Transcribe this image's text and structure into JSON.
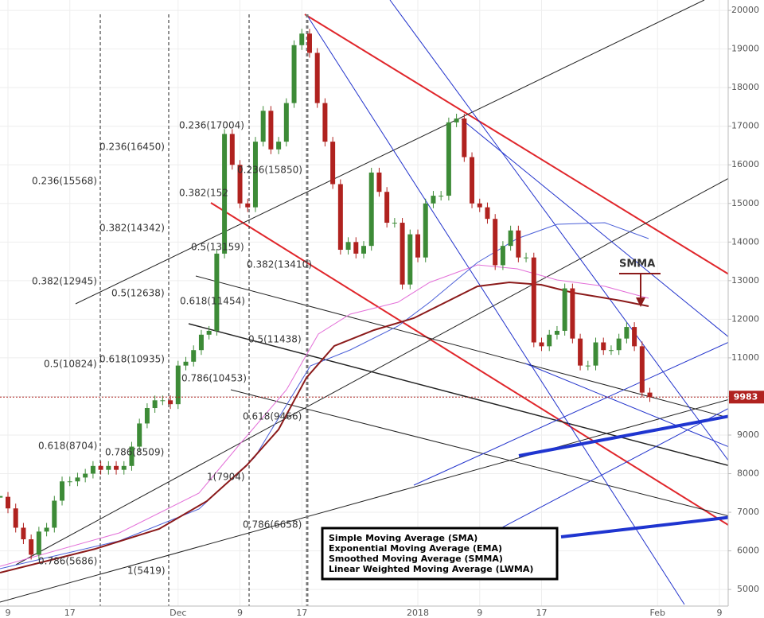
{
  "chart_data": {
    "type": "candlestick",
    "categories": [
      null,
      "9",
      null,
      null,
      null,
      null,
      null,
      null,
      null,
      "17",
      null,
      null,
      null,
      null,
      null,
      null,
      null,
      null,
      null,
      null,
      null,
      null,
      null,
      "Dec",
      null,
      null,
      null,
      null,
      null,
      null,
      null,
      "9",
      null,
      null,
      null,
      null,
      null,
      null,
      null,
      "17",
      null,
      null,
      null,
      null,
      null,
      null,
      null,
      null,
      null,
      null,
      null,
      null,
      null,
      null,
      "2018",
      null,
      null,
      null,
      null,
      null,
      null,
      null,
      "9",
      null,
      null,
      null,
      null,
      null,
      null,
      null,
      "17",
      null,
      null,
      null,
      null,
      null,
      null,
      null,
      null,
      null,
      null,
      null,
      null,
      null,
      null,
      "Feb",
      null,
      null,
      null,
      null,
      null,
      null,
      null,
      "9"
    ],
    "values": [
      7400,
      7100,
      6600,
      6300,
      5900,
      6500,
      6600,
      7300,
      7800,
      7800,
      7900,
      8000,
      8200,
      8100,
      8200,
      8100,
      8200,
      8700,
      9300,
      9700,
      9900,
      9900,
      9800,
      10800,
      10900,
      11200,
      11600,
      11700,
      13700,
      16800,
      16000,
      15000,
      14900,
      16600,
      17400,
      16400,
      16600,
      17600,
      19100,
      19400,
      18900,
      17600,
      16600,
      15500,
      13800,
      14000,
      13700,
      13900,
      15800,
      15300,
      14500,
      14500,
      12900,
      14200,
      13600,
      15000,
      15200,
      15200,
      17100,
      17200,
      16200,
      15000,
      14900,
      14600,
      13400,
      13900,
      14300,
      13600,
      13600,
      11400,
      11300,
      11600,
      11700,
      12800,
      11500,
      10800,
      10800,
      11400,
      11200,
      11200,
      11500,
      11800,
      11300,
      10100,
      9983,
      null,
      null,
      null,
      null,
      null,
      null,
      null,
      null,
      null
    ],
    "up_color": "#3d8b37",
    "down_color": "#b0221f",
    "ylim": [
      4570,
      20270
    ],
    "yticks": [
      5000,
      6000,
      7000,
      8000,
      9000,
      10000,
      11000,
      12000,
      13000,
      14000,
      15000,
      16000,
      17000,
      18000,
      19000,
      20000
    ],
    "grid": true,
    "annotations": [
      "0.236(17004)",
      "0.236(16450)",
      "0.236(15850)",
      "0.236(15568)",
      "0.382(152",
      "0.382(14342)",
      "0.5(13159)",
      "0.382(13410)",
      "0.382(12945)",
      "0.5(12638)",
      "0.618(11454)",
      "0.5(11438)",
      "0.5(10824)",
      "0.618(10935)",
      "0.786(10453)",
      "0.618(9466)",
      "0.618(8704)",
      "0.786(8509)",
      "1(7904)",
      "0.786(6658)",
      "0.786(5686)",
      "1(5419)"
    ],
    "smma_label": "SMMA",
    "legend_box": [
      "Simple Moving Average (SMA)",
      "Exponential Moving Average (EMA)",
      "Smoothed Moving Average (SMMA)",
      "Linear Weighted Moving Average (LWMA)"
    ]
  }
}
